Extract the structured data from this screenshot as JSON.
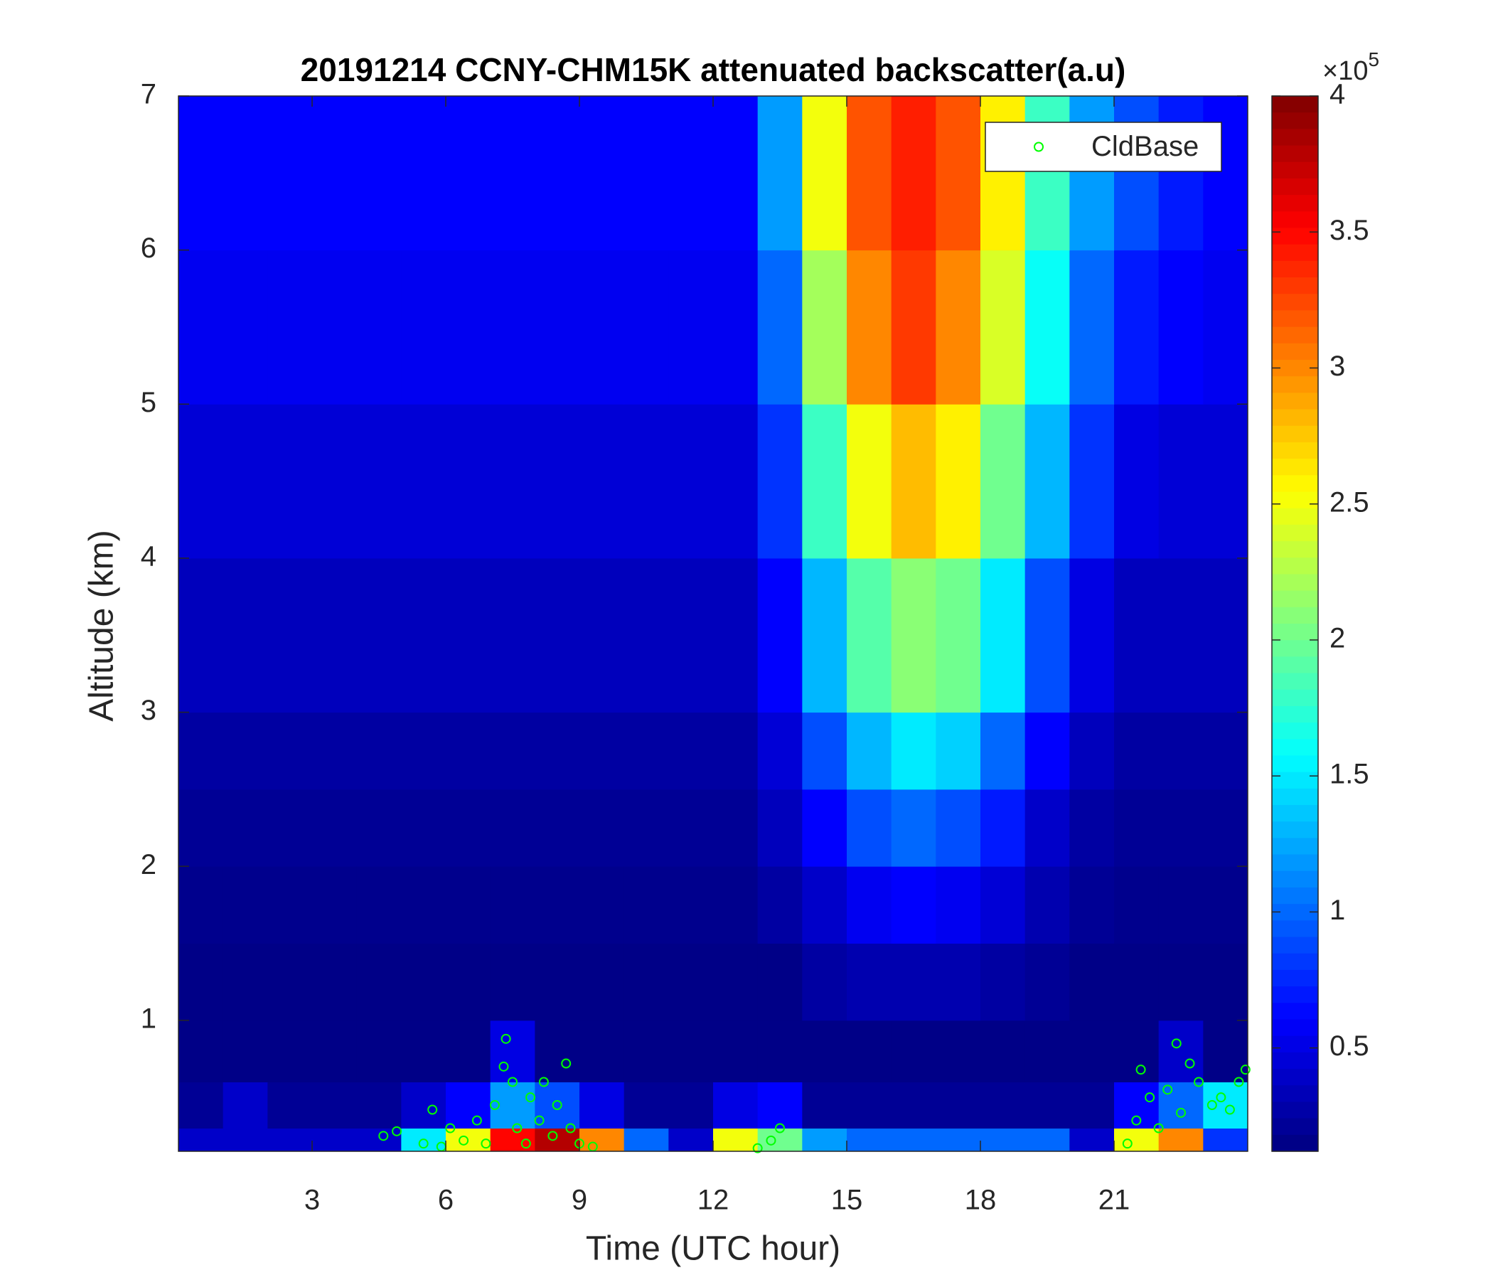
{
  "chart_data": {
    "type": "heatmap",
    "title": "20191214 CCNY-CHM15K attenuated backscatter(a.u)",
    "xlabel": "Time (UTC hour)",
    "ylabel": "Altitude (km)",
    "xlim": [
      0,
      24
    ],
    "ylim": [
      0.15,
      7
    ],
    "xticks": [
      3,
      6,
      9,
      12,
      15,
      18,
      21
    ],
    "yticks": [
      1,
      2,
      3,
      4,
      5,
      6,
      7
    ],
    "x_edges": [
      0,
      1,
      2,
      3,
      4,
      5,
      6,
      7,
      8,
      9,
      10,
      11,
      12,
      13,
      14,
      15,
      16,
      17,
      18,
      19,
      20,
      21,
      22,
      23,
      24
    ],
    "y_edges": [
      0.15,
      0.3,
      0.6,
      1,
      1.5,
      2,
      2.5,
      3,
      4,
      5,
      6,
      7
    ],
    "z": [
      [
        0.4,
        0.4,
        0.4,
        0.4,
        0.4,
        1.5,
        2.5,
        3.5,
        3.8,
        3.0,
        1.0,
        0.4,
        2.5,
        2.0,
        1.2,
        1.0,
        1.0,
        1.0,
        1.0,
        1.0,
        0.4,
        2.5,
        3.0,
        0.8
      ],
      [
        0.2,
        0.4,
        0.2,
        0.2,
        0.2,
        0.4,
        0.6,
        1.2,
        0.9,
        0.5,
        0.2,
        0.2,
        0.5,
        0.6,
        0.2,
        0.2,
        0.2,
        0.2,
        0.2,
        0.2,
        0.2,
        0.6,
        1.0,
        1.5
      ],
      [
        0.15,
        0.15,
        0.15,
        0.15,
        0.15,
        0.15,
        0.15,
        0.5,
        0.15,
        0.15,
        0.15,
        0.15,
        0.15,
        0.15,
        0.15,
        0.15,
        0.15,
        0.15,
        0.15,
        0.15,
        0.15,
        0.15,
        0.4,
        0.15
      ],
      [
        0.15,
        0.15,
        0.15,
        0.15,
        0.15,
        0.15,
        0.15,
        0.15,
        0.15,
        0.15,
        0.15,
        0.15,
        0.15,
        0.15,
        0.25,
        0.3,
        0.3,
        0.3,
        0.25,
        0.2,
        0.15,
        0.15,
        0.15,
        0.15
      ],
      [
        0.17,
        0.17,
        0.17,
        0.17,
        0.17,
        0.17,
        0.17,
        0.17,
        0.17,
        0.17,
        0.17,
        0.17,
        0.17,
        0.25,
        0.4,
        0.55,
        0.6,
        0.55,
        0.45,
        0.3,
        0.2,
        0.17,
        0.17,
        0.17
      ],
      [
        0.2,
        0.2,
        0.2,
        0.2,
        0.2,
        0.2,
        0.2,
        0.2,
        0.2,
        0.2,
        0.2,
        0.2,
        0.2,
        0.35,
        0.6,
        0.9,
        1.0,
        0.9,
        0.7,
        0.4,
        0.25,
        0.2,
        0.2,
        0.2
      ],
      [
        0.25,
        0.25,
        0.25,
        0.25,
        0.25,
        0.25,
        0.25,
        0.25,
        0.25,
        0.25,
        0.25,
        0.25,
        0.25,
        0.45,
        0.9,
        1.3,
        1.5,
        1.4,
        1.0,
        0.6,
        0.35,
        0.25,
        0.25,
        0.25
      ],
      [
        0.35,
        0.35,
        0.35,
        0.35,
        0.35,
        0.35,
        0.35,
        0.35,
        0.35,
        0.35,
        0.35,
        0.35,
        0.35,
        0.6,
        1.3,
        1.9,
        2.1,
        2.0,
        1.5,
        0.9,
        0.5,
        0.35,
        0.35,
        0.35
      ],
      [
        0.45,
        0.45,
        0.45,
        0.45,
        0.45,
        0.45,
        0.45,
        0.45,
        0.45,
        0.45,
        0.45,
        0.45,
        0.45,
        0.8,
        1.8,
        2.5,
        2.8,
        2.6,
        2.0,
        1.3,
        0.8,
        0.5,
        0.45,
        0.45
      ],
      [
        0.55,
        0.55,
        0.55,
        0.55,
        0.55,
        0.55,
        0.55,
        0.55,
        0.55,
        0.55,
        0.55,
        0.55,
        0.55,
        1.0,
        2.2,
        3.0,
        3.3,
        3.0,
        2.4,
        1.6,
        1.0,
        0.7,
        0.6,
        0.55
      ],
      [
        0.6,
        0.6,
        0.6,
        0.6,
        0.6,
        0.6,
        0.6,
        0.6,
        0.6,
        0.6,
        0.6,
        0.6,
        0.6,
        1.2,
        2.5,
        3.2,
        3.4,
        3.2,
        2.6,
        1.8,
        1.2,
        0.9,
        0.7,
        0.6
      ]
    ],
    "colormap": "jet",
    "clim": [
      0.12,
      4
    ],
    "colorbar_ticks": [
      0.5,
      1,
      1.5,
      2,
      2.5,
      3,
      3.5,
      4
    ],
    "colorbar_multiplier": {
      "base": "×10",
      "exponent": "5"
    },
    "legend": "upper right",
    "series": [
      {
        "name": "CldBase",
        "type": "scatter",
        "color": "#00ff00",
        "x": [
          4.6,
          4.9,
          5.5,
          5.7,
          5.9,
          6.1,
          6.4,
          6.7,
          6.9,
          7.1,
          7.3,
          7.35,
          7.5,
          7.6,
          7.8,
          7.9,
          8.1,
          8.2,
          8.4,
          8.5,
          8.7,
          8.8,
          9.0,
          9.3,
          13.0,
          13.3,
          13.5,
          21.3,
          21.5,
          21.6,
          21.8,
          22.0,
          22.2,
          22.4,
          22.5,
          22.7,
          22.9,
          23.2,
          23.4,
          23.6,
          23.8,
          23.95
        ],
        "y": [
          0.25,
          0.28,
          0.2,
          0.42,
          0.18,
          0.3,
          0.22,
          0.35,
          0.2,
          0.45,
          0.7,
          0.88,
          0.6,
          0.3,
          0.2,
          0.5,
          0.35,
          0.6,
          0.25,
          0.45,
          0.72,
          0.3,
          0.2,
          0.18,
          0.17,
          0.22,
          0.3,
          0.2,
          0.35,
          0.68,
          0.5,
          0.3,
          0.55,
          0.85,
          0.4,
          0.72,
          0.6,
          0.45,
          0.5,
          0.42,
          0.6,
          0.68
        ]
      }
    ]
  }
}
